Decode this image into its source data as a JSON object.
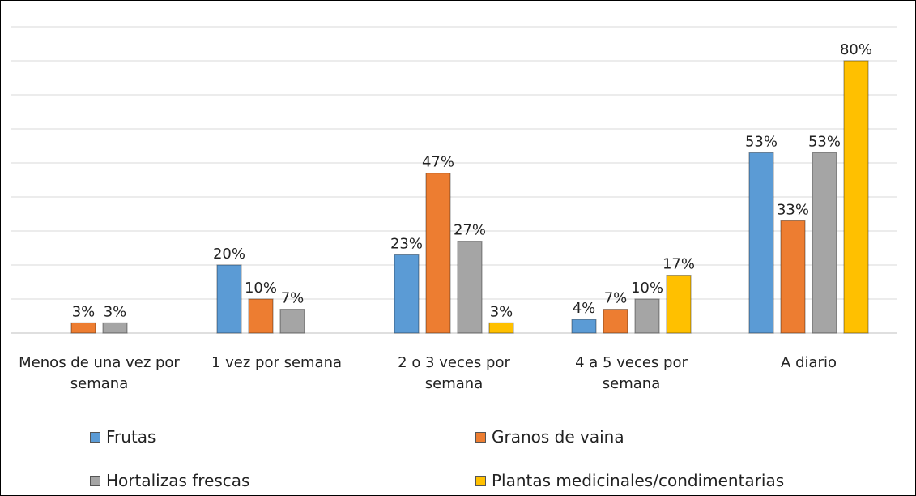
{
  "chart_data": {
    "type": "bar",
    "categories": [
      "Menos de una vez por semana",
      "1 vez por semana",
      "2 o 3 veces por semana",
      "4 a 5 veces por semana",
      "A diario"
    ],
    "series": [
      {
        "name": "Frutas",
        "color": "#5b9bd5",
        "values": [
          null,
          20,
          23,
          4,
          53
        ],
        "value_labels": [
          null,
          "20%",
          "23%",
          "4%",
          "53%"
        ]
      },
      {
        "name": "Granos de vaina",
        "color": "#ed7d31",
        "values": [
          3,
          10,
          47,
          7,
          33
        ],
        "value_labels": [
          "3%",
          "10%",
          "47%",
          "7%",
          "33%"
        ]
      },
      {
        "name": "Hortalizas frescas",
        "color": "#a5a5a5",
        "values": [
          3,
          7,
          27,
          10,
          53
        ],
        "value_labels": [
          "3%",
          "7%",
          "27%",
          "10%",
          "53%"
        ]
      },
      {
        "name": "Plantas medicinales/condimentarias",
        "color": "#ffc000",
        "values": [
          null,
          null,
          3,
          17,
          80
        ],
        "value_labels": [
          null,
          null,
          "3%",
          "17%",
          "80%"
        ]
      }
    ],
    "ylim": [
      0,
      90
    ],
    "yticks": [
      0,
      10,
      20,
      30,
      40,
      50,
      60,
      70,
      80,
      90
    ],
    "grid": true
  }
}
